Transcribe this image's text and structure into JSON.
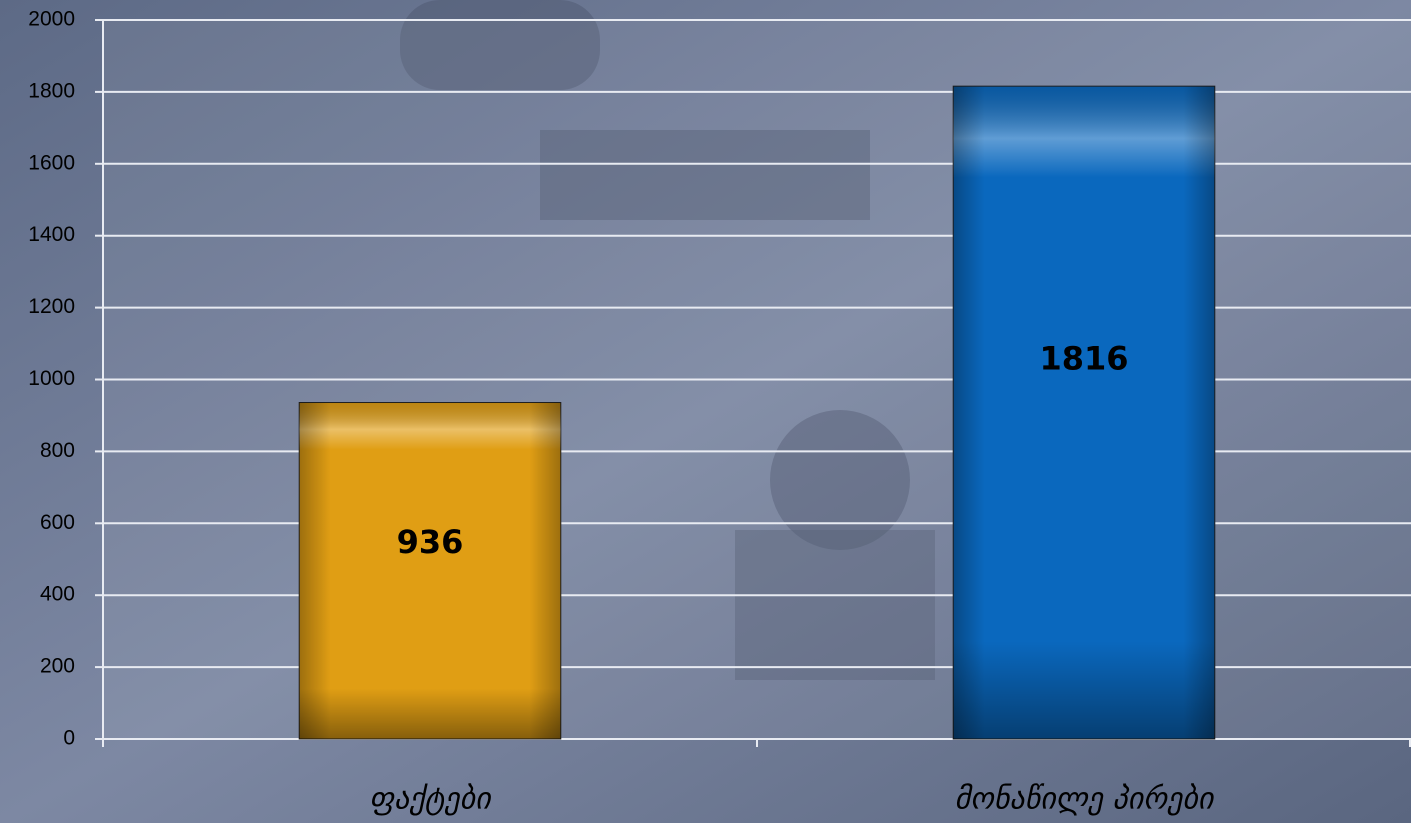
{
  "chart_data": {
    "type": "bar",
    "categories": [
      "ფაქტები",
      "მონაწილე პირები"
    ],
    "values": [
      936,
      1816
    ],
    "colors": [
      "#e09e14",
      "#0a68be"
    ],
    "ylim": [
      0,
      2000
    ],
    "yticks": [
      0,
      200,
      400,
      600,
      800,
      1000,
      1200,
      1400,
      1600,
      1800,
      2000
    ],
    "grid": true
  }
}
